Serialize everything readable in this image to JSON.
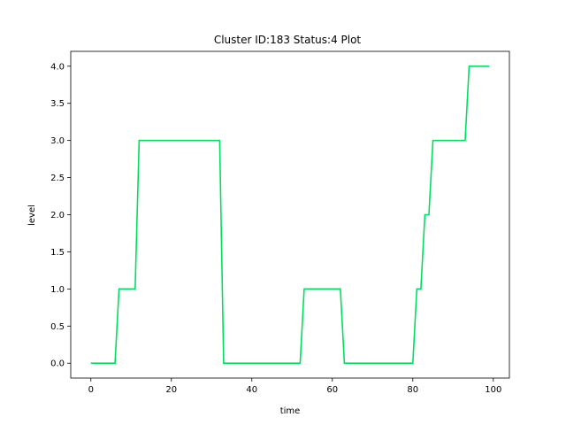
{
  "chart_data": {
    "type": "line",
    "title": "Cluster ID:183 Status:4 Plot",
    "xlabel": "time",
    "ylabel": "level",
    "xlim": [
      -5,
      104
    ],
    "ylim": [
      -0.2,
      4.2
    ],
    "xticks": [
      0,
      20,
      40,
      60,
      80,
      100
    ],
    "yticks": [
      0.0,
      0.5,
      1.0,
      1.5,
      2.0,
      2.5,
      3.0,
      3.5,
      4.0
    ],
    "ytick_labels": [
      "0.0",
      "0.5",
      "1.0",
      "1.5",
      "2.0",
      "2.5",
      "3.0",
      "3.5",
      "4.0"
    ],
    "grid": false,
    "series": [
      {
        "color": "#00e060",
        "x": [
          0,
          6,
          7,
          11,
          12,
          32,
          33,
          52,
          53,
          62,
          63,
          80,
          81,
          82,
          83,
          84,
          85,
          93,
          94,
          99
        ],
        "y": [
          0,
          0,
          1,
          1,
          3,
          3,
          0,
          0,
          1,
          1,
          0,
          0,
          1,
          1,
          2,
          2,
          3,
          3,
          4,
          4
        ]
      }
    ]
  }
}
